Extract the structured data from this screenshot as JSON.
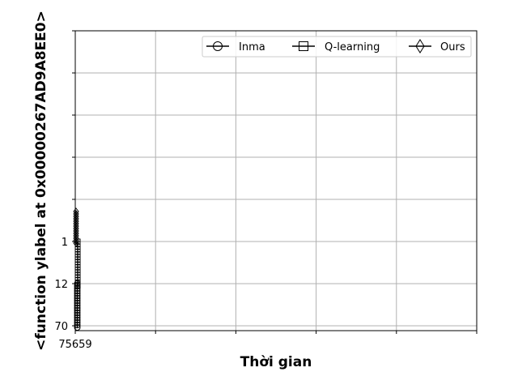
{
  "chart_data": {
    "type": "line",
    "xlabel": "Thời gian",
    "ylabel": "<function ylabel at 0x00000267AD9A8EE0>",
    "x_ticks": [
      "75659",
      "",
      "",
      "",
      "",
      ""
    ],
    "y_ticks": [
      "70",
      "12",
      "1",
      "",
      "",
      "",
      "",
      ""
    ],
    "grid": true,
    "legend_position": "top-right",
    "series": [
      {
        "name": "Inma",
        "marker": "circle"
      },
      {
        "name": "Q-learning",
        "marker": "square"
      },
      {
        "name": "Ours",
        "marker": "diamond"
      }
    ]
  },
  "colors": {
    "line": "#000000",
    "grid": "#b0b0b0",
    "legend_border": "#cccccc"
  }
}
